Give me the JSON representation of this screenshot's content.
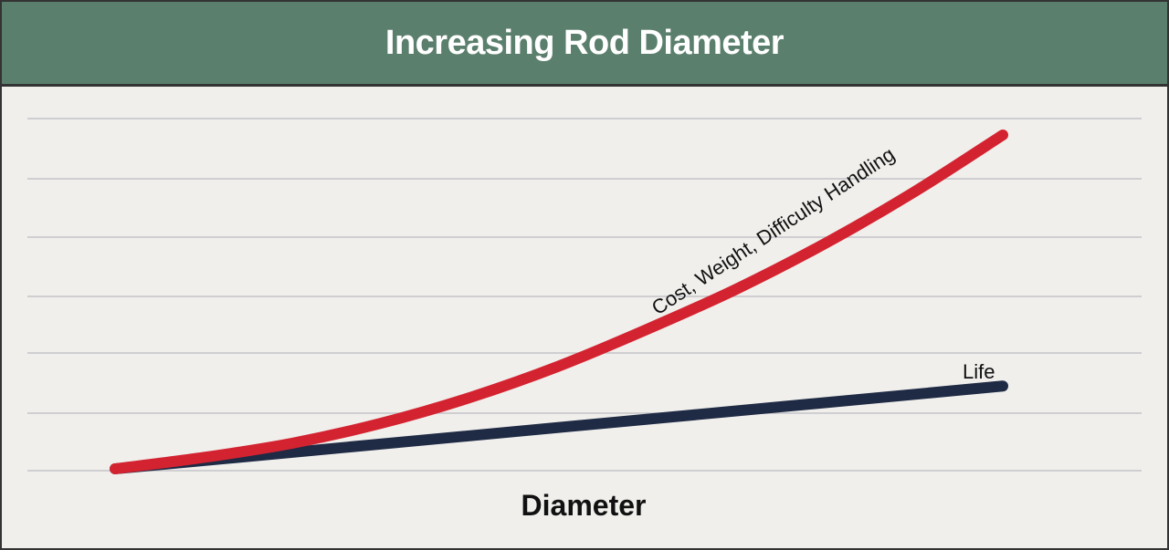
{
  "chart_data": {
    "type": "line",
    "title": "Increasing Rod Diameter",
    "xlabel": "Diameter",
    "ylabel": "",
    "grid": true,
    "series": [
      {
        "name": "Life",
        "color": "#1f2a44",
        "x": [
          0,
          10
        ],
        "y": [
          0,
          1.45
        ]
      },
      {
        "name": "Cost, Weight, Difficulty Handling",
        "color": "#d42330",
        "x": [
          0,
          1,
          2,
          3,
          4,
          5,
          6,
          7,
          8,
          9,
          10
        ],
        "y": [
          0,
          0.2,
          0.45,
          0.8,
          1.25,
          1.8,
          2.45,
          3.15,
          3.95,
          4.85,
          5.85
        ]
      }
    ]
  }
}
